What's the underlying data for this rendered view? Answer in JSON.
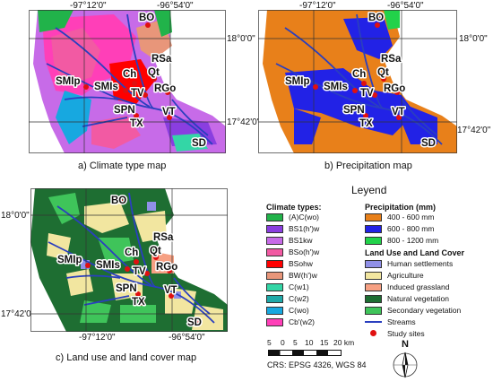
{
  "maps": {
    "a": {
      "caption": "a) Climate type map",
      "ticks": {
        "top_left": "-97°12'0\"",
        "top_right": "-96°54'0\"",
        "right_top": "18°0'0\"",
        "right_bottom": "17°42'0\""
      }
    },
    "b": {
      "caption": "b) Precipitation map",
      "ticks": {
        "top_left": "-97°12'0\"",
        "top_right": "-96°54'0\"",
        "right_top": "18°0'0\"",
        "right_bottom": "17°42'0\""
      }
    },
    "c": {
      "caption": "c) Land use and land cover map",
      "ticks": {
        "left_top": "18°0'0\"",
        "left_bottom": "17°42'0\"",
        "bottom_left": "-97°12'0\"",
        "bottom_right": "-96°54'0\""
      }
    }
  },
  "sites": [
    "BO",
    "RSa",
    "Ch",
    "Qt",
    "SMIp",
    "SMIs",
    "TV",
    "RGo",
    "SPN",
    "VT",
    "TX",
    "SD"
  ],
  "legend": {
    "title": "Leyend",
    "climate": {
      "heading": "Climate types:",
      "items": [
        {
          "label": "(A)C(wo)",
          "color": "#21b34a"
        },
        {
          "label": "BS1(h')w",
          "color": "#8a3ee0"
        },
        {
          "label": "BS1kw",
          "color": "#c76be8"
        },
        {
          "label": "BSo(h')w",
          "color": "#f25aa3"
        },
        {
          "label": "BSohw",
          "color": "#ff0000"
        },
        {
          "label": "BW(h')w",
          "color": "#e8967a"
        },
        {
          "label": "C(w1)",
          "color": "#33d6a6"
        },
        {
          "label": "C(w2)",
          "color": "#1fa9a9"
        },
        {
          "label": "C(wo)",
          "color": "#17a8e0"
        },
        {
          "label": "Cb'(w2)",
          "color": "#ff3fb8"
        }
      ]
    },
    "precipitation": {
      "heading": "Precipitation (mm)",
      "items": [
        {
          "label": "400 - 600 mm",
          "color": "#e8801a"
        },
        {
          "label": "600 - 800 mm",
          "color": "#2222e6"
        },
        {
          "label": "800 - 1200 mm",
          "color": "#22d24a"
        }
      ]
    },
    "landuse": {
      "heading": "Land Use and Land Cover",
      "items": [
        {
          "label": "Human settlements",
          "color": "#9090e8"
        },
        {
          "label": "Agriculture",
          "color": "#f2e6a0"
        },
        {
          "label": "Induced grassland",
          "color": "#f6a083"
        },
        {
          "label": "Natural vegetation",
          "color": "#1e6e32"
        },
        {
          "label": "Secondary vegetation",
          "color": "#3fc45a"
        }
      ]
    },
    "streams_label": "Streams",
    "sites_label": "Study sites"
  },
  "scale": {
    "labels": [
      "5",
      "0",
      "5",
      "10",
      "15",
      "20 km"
    ]
  },
  "crs": "CRS: EPSG 4326, WGS 84",
  "north_label": "N"
}
